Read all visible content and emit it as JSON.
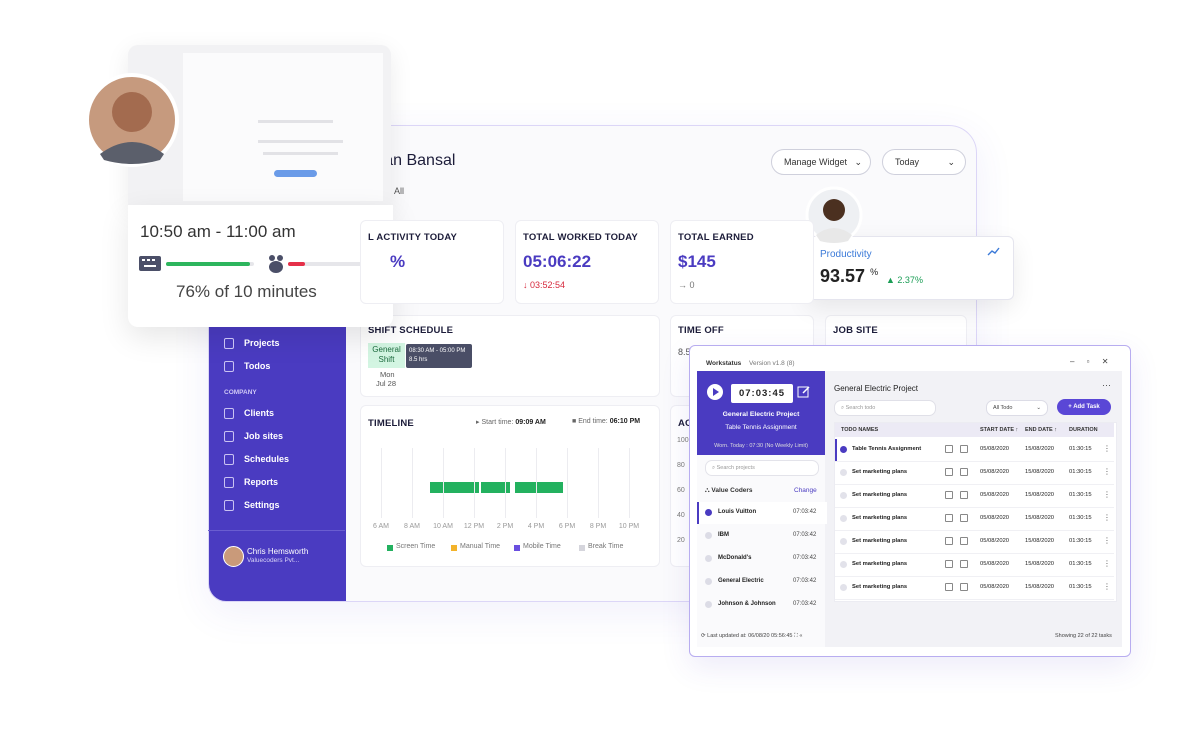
{
  "dashboard": {
    "user_name": "aran Bansal",
    "manage_widget": "Manage Widget",
    "period": "Today",
    "filter": "All",
    "stats": [
      {
        "label": "L ACTIVITY TODAY",
        "value": "%"
      },
      {
        "label": "TOTAL WORKED TODAY",
        "value": "05:06:22",
        "delta": "↓ 03:52:54"
      },
      {
        "label": "TOTAL EARNED",
        "value": "$145",
        "delta": "→ 0"
      }
    ],
    "sidebar": {
      "items": [
        "Projects",
        "Todos"
      ],
      "section": "COMPANY",
      "company_items": [
        "Clients",
        "Job sites",
        "Schedules",
        "Reports",
        "Settings"
      ],
      "user": "Chris Hemsworth",
      "company": "Valuecoders Pvt..."
    },
    "shift": {
      "title": "SHIFT SCHEDULE",
      "badge": "General Shift",
      "time": "08:30 AM - 05:00 PM",
      "hours": "8.5 hrs",
      "day": "Mon",
      "date": "Jul 28"
    },
    "time_off": {
      "title": "TIME OFF",
      "value": "8.5"
    },
    "job_site": "JOB SITE",
    "timeline": {
      "title": "TIMELINE",
      "start_label": "Start time:",
      "start": "09:09 AM",
      "end_label": "End time:",
      "end": "06:10 PM",
      "hours": [
        "6 AM",
        "8 AM",
        "10 AM",
        "12 PM",
        "2 PM",
        "4 PM",
        "6 PM",
        "8 PM",
        "10 PM"
      ],
      "legend": [
        {
          "name": "Screen Time",
          "color": "#23b15f"
        },
        {
          "name": "Manual Time",
          "color": "#f3b32a"
        },
        {
          "name": "Mobile Time",
          "color": "#6a4fe0"
        },
        {
          "name": "Break Time",
          "color": "#d5d5dc"
        }
      ]
    },
    "activity": {
      "title": "AC",
      "ticks": [
        "100",
        "80",
        "60",
        "40",
        "20"
      ]
    }
  },
  "activity_popup": {
    "time_range": "10:50 am - 11:00 am",
    "summary": "76% of 10 minutes"
  },
  "productivity": {
    "title": "Productivity",
    "value": "93.57",
    "unit": "%",
    "change": "2.37%"
  },
  "app": {
    "name": "Workstatus",
    "version": "Version v1.8 (8)",
    "timer": "07:03:45",
    "current_project": "General Electric Project",
    "current_task": "Table Tennis Assignment",
    "worked_today": "Worn. Today : 07:30 (No Weekly Limit)",
    "search_projects": "Search projects",
    "org": "Value Coders",
    "change": "Change",
    "projects": [
      {
        "name": "Louis Vuitton",
        "time": "07:03:42"
      },
      {
        "name": "IBM",
        "time": "07:03:42"
      },
      {
        "name": "McDonald's",
        "time": "07:03:42"
      },
      {
        "name": "General Electric",
        "time": "07:03:42"
      },
      {
        "name": "Johnson & Johnson",
        "time": "07:03:42"
      }
    ],
    "last_updated": "Last updated at: 06/08/20 05:56:45",
    "project_heading": "General Electric Project",
    "search_todo": "Search todo",
    "todo_filter": "All Todo",
    "add_task": "Add Task",
    "columns": [
      "TODO NAMES",
      "START DATE ↑",
      "END DATE ↑",
      "DURATION"
    ],
    "todos": [
      [
        "Table Tennis Assignment",
        "05/08/2020",
        "15/08/2020",
        "01:30:15"
      ],
      [
        "Set marketing plans",
        "05/08/2020",
        "15/08/2020",
        "01:30:15"
      ],
      [
        "Set marketing plans",
        "05/08/2020",
        "15/08/2020",
        "01:30:15"
      ],
      [
        "Set marketing plans",
        "05/08/2020",
        "15/08/2020",
        "01:30:15"
      ],
      [
        "Set marketing plans",
        "05/08/2020",
        "15/08/2020",
        "01:30:15"
      ],
      [
        "Set marketing plans",
        "05/08/2020",
        "15/08/2020",
        "01:30:15"
      ],
      [
        "Set marketing plans",
        "05/08/2020",
        "15/08/2020",
        "01:30:15"
      ]
    ],
    "showing": "Showing 22 of 22 tasks"
  }
}
